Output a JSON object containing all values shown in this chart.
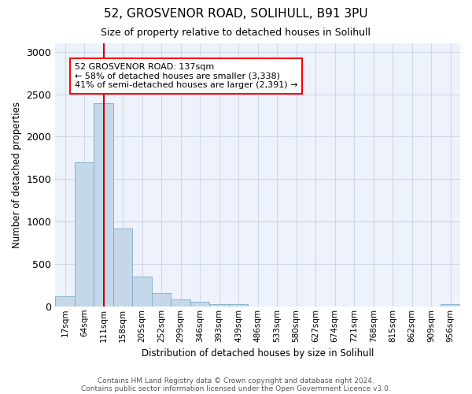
{
  "title1": "52, GROSVENOR ROAD, SOLIHULL, B91 3PU",
  "title2": "Size of property relative to detached houses in Solihull",
  "xlabel": "Distribution of detached houses by size in Solihull",
  "ylabel": "Number of detached properties",
  "bar_color": "#c5d8ea",
  "bar_edge_color": "#7aaac8",
  "categories": [
    "17sqm",
    "64sqm",
    "111sqm",
    "158sqm",
    "205sqm",
    "252sqm",
    "299sqm",
    "346sqm",
    "393sqm",
    "439sqm",
    "486sqm",
    "533sqm",
    "580sqm",
    "627sqm",
    "674sqm",
    "721sqm",
    "768sqm",
    "815sqm",
    "862sqm",
    "909sqm",
    "956sqm"
  ],
  "values": [
    120,
    1700,
    2390,
    920,
    350,
    155,
    85,
    55,
    30,
    30,
    0,
    0,
    0,
    0,
    0,
    0,
    0,
    0,
    0,
    0,
    30
  ],
  "ylim": [
    0,
    3100
  ],
  "yticks": [
    0,
    500,
    1000,
    1500,
    2000,
    2500,
    3000
  ],
  "vline_color": "#cc0000",
  "annotation_text": "52 GROSVENOR ROAD: 137sqm\n← 58% of detached houses are smaller (3,338)\n41% of semi-detached houses are larger (2,391) →",
  "footnote1": "Contains HM Land Registry data © Crown copyright and database right 2024.",
  "footnote2": "Contains public sector information licensed under the Open Government Licence v3.0.",
  "grid_color": "#d0d8ec",
  "background_color": "#eef2fa"
}
